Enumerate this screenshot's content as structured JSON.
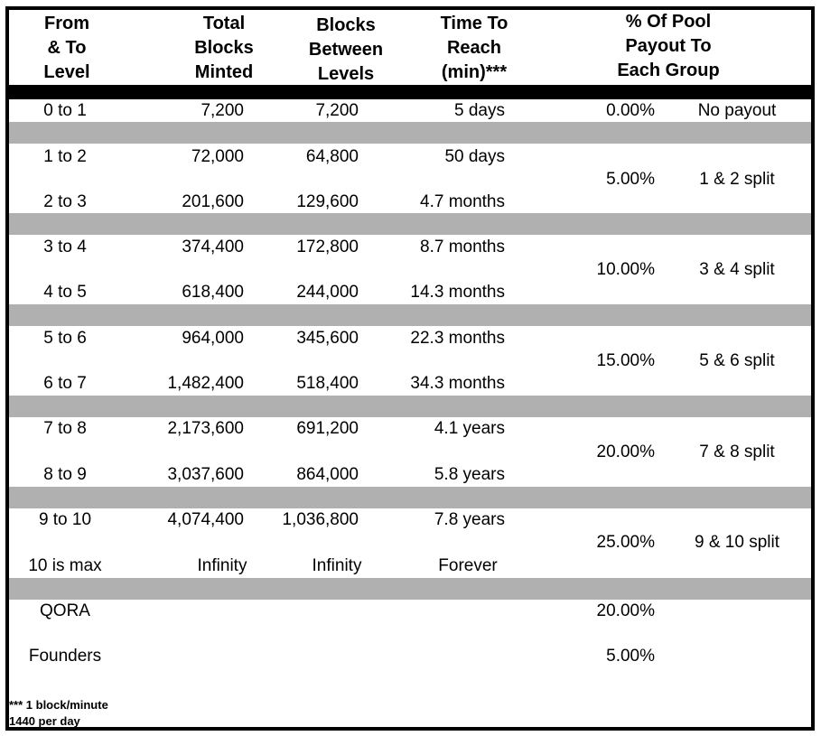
{
  "headers": {
    "from_to": [
      "From",
      "& To",
      "Level"
    ],
    "total": [
      "Total",
      "Blocks",
      "Minted"
    ],
    "between": [
      "Blocks",
      "Between",
      "Levels"
    ],
    "time": [
      "Time To",
      "Reach",
      "(min)***"
    ],
    "pool": [
      "% Of Pool",
      "Payout To",
      "Each Group"
    ]
  },
  "rows": [
    {
      "level": "0 to 1",
      "total": "7,200",
      "between": "7,200",
      "time": "5 days"
    },
    {
      "level": "1 to 2",
      "total": "72,000",
      "between": "64,800",
      "time": "50 days"
    },
    {
      "level": "2 to 3",
      "total": "201,600",
      "between": "129,600",
      "time": "4.7 months"
    },
    {
      "level": "3 to 4",
      "total": "374,400",
      "between": "172,800",
      "time": "8.7 months"
    },
    {
      "level": "4 to 5",
      "total": "618,400",
      "between": "244,000",
      "time": "14.3 months"
    },
    {
      "level": "5 to 6",
      "total": "964,000",
      "between": "345,600",
      "time": "22.3 months"
    },
    {
      "level": "6 to 7",
      "total": "1,482,400",
      "between": "518,400",
      "time": "34.3 months"
    },
    {
      "level": "7 to 8",
      "total": "2,173,600",
      "between": "691,200",
      "time": "4.1 years"
    },
    {
      "level": "8 to 9",
      "total": "3,037,600",
      "between": "864,000",
      "time": "5.8 years"
    },
    {
      "level": "9 to 10",
      "total": "4,074,400",
      "between": "1,036,800",
      "time": "7.8 years"
    },
    {
      "level": "10 is max",
      "total": "Infinity",
      "between": "Infinity",
      "time": "Forever"
    }
  ],
  "groups": [
    {
      "pct": "0.00%",
      "label": "No payout"
    },
    {
      "pct": "5.00%",
      "label": "1 & 2 split"
    },
    {
      "pct": "10.00%",
      "label": "3 & 4 split"
    },
    {
      "pct": "15.00%",
      "label": "5 & 6 split"
    },
    {
      "pct": "20.00%",
      "label": "7 & 8 split"
    },
    {
      "pct": "25.00%",
      "label": "9 & 10 split"
    }
  ],
  "extras": [
    {
      "name": "QORA",
      "pct": "20.00%"
    },
    {
      "name": "Founders",
      "pct": "5.00%"
    }
  ],
  "footnote": [
    "*** 1 block/minute",
    "1440 per day"
  ]
}
